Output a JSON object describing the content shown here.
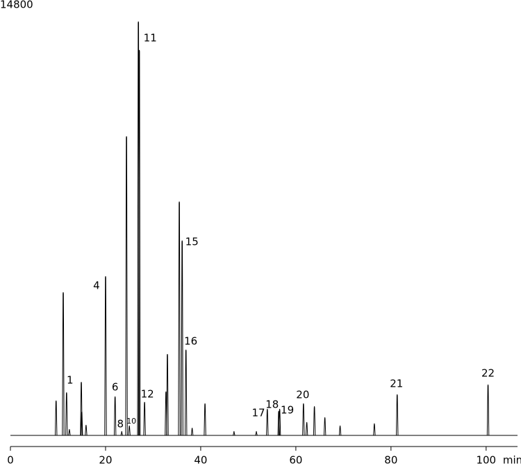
{
  "chart_data": {
    "type": "chromatogram",
    "x_label": "min",
    "xlim": [
      0,
      106.6
    ],
    "xticks": [
      0,
      20,
      40,
      60,
      80,
      100
    ],
    "ylim": [
      0,
      14800
    ],
    "yticks": [
      14800
    ],
    "color": "#000000",
    "peaks": [
      {
        "time": 9.6,
        "height": 1200
      },
      {
        "time": 11.1,
        "height": 4930
      },
      {
        "time": 11.8,
        "height": 1480,
        "label": "1"
      },
      {
        "time": 12.4,
        "height": 215
      },
      {
        "time": 14.9,
        "height": 1840
      },
      {
        "time": 15.0,
        "height": 815
      },
      {
        "time": 15.9,
        "height": 360
      },
      {
        "time": 20.0,
        "height": 5480,
        "label": "4"
      },
      {
        "time": 22.0,
        "height": 1340,
        "label": "6"
      },
      {
        "time": 23.4,
        "height": 145,
        "label": "8"
      },
      {
        "time": 24.4,
        "height": 10300
      },
      {
        "time": 25.0,
        "height": 335,
        "label": "10"
      },
      {
        "time": 26.9,
        "height": 14250,
        "label": "11"
      },
      {
        "time": 27.1,
        "height": 13270
      },
      {
        "time": 28.2,
        "height": 1150,
        "label": "12"
      },
      {
        "time": 32.7,
        "height": 1510
      },
      {
        "time": 33.0,
        "height": 2800
      },
      {
        "time": 35.5,
        "height": 8050
      },
      {
        "time": 36.1,
        "height": 6710,
        "label": "15"
      },
      {
        "time": 36.9,
        "height": 2950,
        "label": "16"
      },
      {
        "time": 38.2,
        "height": 260
      },
      {
        "time": 40.9,
        "height": 1100
      },
      {
        "time": 47.0,
        "height": 145
      },
      {
        "time": 51.7,
        "height": 145,
        "label": "17"
      },
      {
        "time": 54.0,
        "height": 910,
        "label": "18"
      },
      {
        "time": 56.4,
        "height": 840
      },
      {
        "time": 56.6,
        "height": 910,
        "label": "19"
      },
      {
        "time": 61.6,
        "height": 1100,
        "label": "20"
      },
      {
        "time": 62.3,
        "height": 455
      },
      {
        "time": 63.9,
        "height": 1000
      },
      {
        "time": 66.1,
        "height": 620
      },
      {
        "time": 69.3,
        "height": 335
      },
      {
        "time": 76.5,
        "height": 410
      },
      {
        "time": 81.3,
        "height": 1410,
        "label": "21"
      },
      {
        "time": 100.4,
        "height": 1750,
        "label": "22"
      }
    ]
  }
}
